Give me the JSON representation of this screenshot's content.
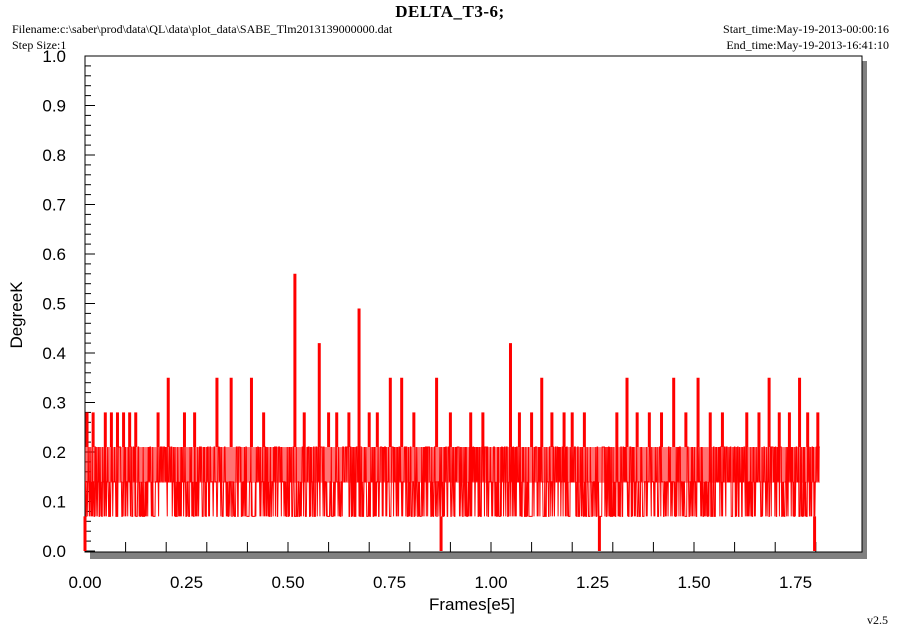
{
  "header": {
    "title": "DELTA_T3-6;",
    "filename": "Filename:c:\\saber\\prod\\data\\QL\\data\\plot_data\\SABE_Tlm2013139000000.dat",
    "step_size": "Step Size:1",
    "start_time": "Start_time:May-19-2013-00:00:16",
    "end_time": "End_time:May-19-2013-16:41:10",
    "version": "v2.5"
  },
  "colors": {
    "series": "#ff0000",
    "shadow": "#808080"
  },
  "chart_data": {
    "type": "line",
    "xlabel": "Frames[e5]",
    "ylabel": "DegreeK",
    "xlim": [
      0,
      1.9
    ],
    "ylim": [
      0.0,
      1.0
    ],
    "x_ticks": [
      "0.00",
      "0.25",
      "0.50",
      "0.75",
      "1.00",
      "1.25",
      "1.50",
      "1.75"
    ],
    "y_ticks": [
      "0.0",
      "0.1",
      "0.2",
      "0.3",
      "0.4",
      "0.5",
      "0.6",
      "0.7",
      "0.8",
      "0.9",
      "1.0"
    ],
    "grid": false,
    "series": [
      {
        "x_range": [
          0.0,
          1.81
        ],
        "baseline_band": [
          0.07,
          0.21
        ],
        "x": [
          0.0,
          0.005,
          0.012,
          0.02,
          0.035,
          0.05,
          0.065,
          0.08,
          0.095,
          0.11,
          0.125,
          0.14,
          0.16,
          0.18,
          0.205,
          0.225,
          0.245,
          0.27,
          0.3,
          0.325,
          0.36,
          0.39,
          0.41,
          0.44,
          0.47,
          0.517,
          0.54,
          0.577,
          0.6,
          0.62,
          0.65,
          0.675,
          0.7,
          0.72,
          0.752,
          0.78,
          0.81,
          0.84,
          0.866,
          0.877,
          0.9,
          0.95,
          0.98,
          1.01,
          1.048,
          1.07,
          1.1,
          1.125,
          1.15,
          1.18,
          1.2,
          1.23,
          1.267,
          1.29,
          1.31,
          1.335,
          1.36,
          1.39,
          1.42,
          1.45,
          1.48,
          1.51,
          1.54,
          1.57,
          1.6,
          1.63,
          1.66,
          1.685,
          1.71,
          1.735,
          1.76,
          1.78,
          1.797,
          1.805,
          1.81
        ],
        "y": [
          0.0,
          0.28,
          0.21,
          0.28,
          0.21,
          0.28,
          0.28,
          0.28,
          0.28,
          0.28,
          0.28,
          0.21,
          0.21,
          0.28,
          0.35,
          0.21,
          0.28,
          0.28,
          0.21,
          0.35,
          0.35,
          0.21,
          0.35,
          0.28,
          0.21,
          0.56,
          0.28,
          0.42,
          0.28,
          0.28,
          0.28,
          0.49,
          0.28,
          0.28,
          0.35,
          0.35,
          0.28,
          0.21,
          0.35,
          0.0,
          0.28,
          0.28,
          0.28,
          0.21,
          0.42,
          0.28,
          0.28,
          0.35,
          0.28,
          0.28,
          0.28,
          0.28,
          0.0,
          0.21,
          0.28,
          0.35,
          0.28,
          0.28,
          0.28,
          0.35,
          0.28,
          0.35,
          0.28,
          0.28,
          0.21,
          0.28,
          0.28,
          0.35,
          0.28,
          0.28,
          0.35,
          0.28,
          0.0,
          0.28,
          0.21
        ]
      }
    ]
  }
}
